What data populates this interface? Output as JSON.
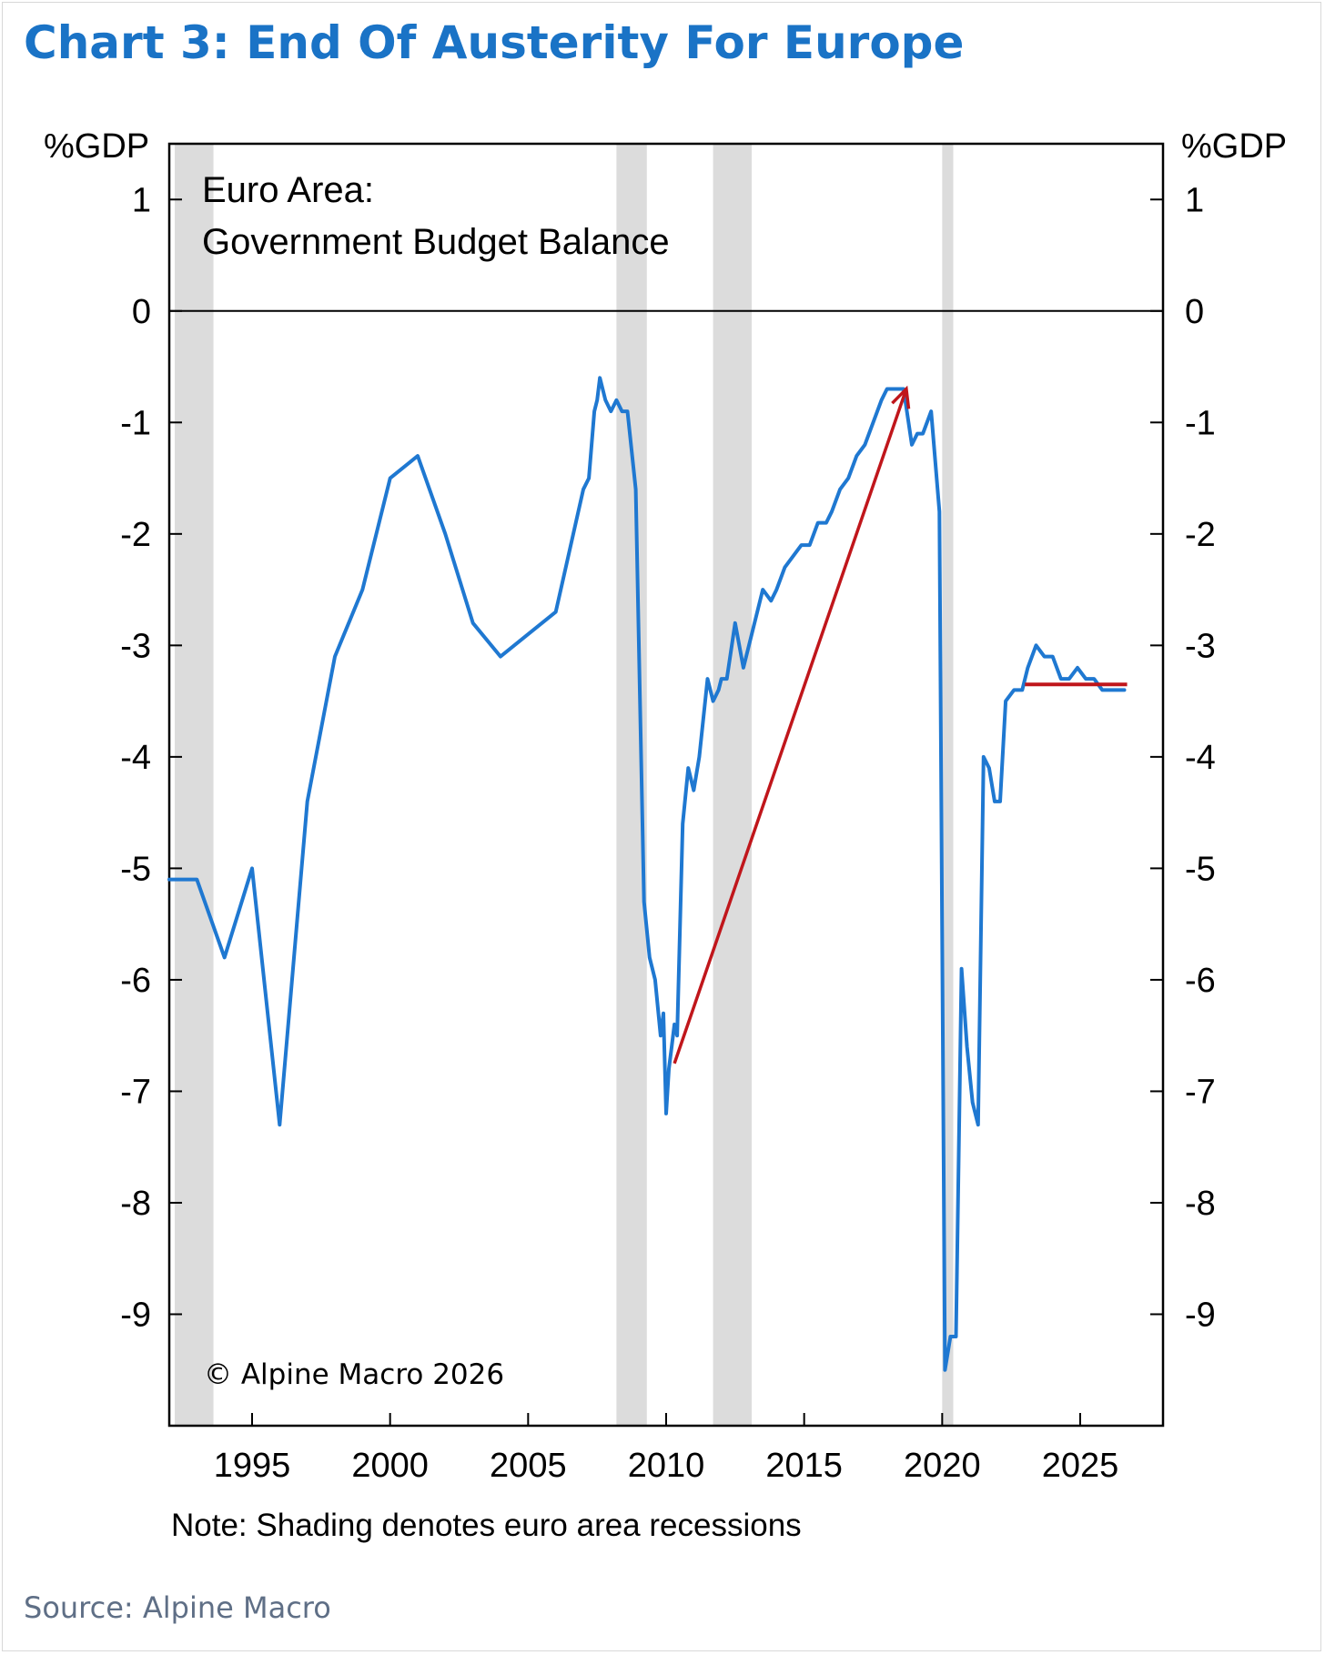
{
  "title": "Chart 3: End Of Austerity For Europe",
  "source": "Source: Alpine Macro",
  "note": "Note: Shading denotes euro area recessions",
  "copyright": "© Alpine Macro 2026",
  "annotation": {
    "line1": "Euro Area:",
    "line2": "Government Budget Balance"
  },
  "colors": {
    "title": "#1a73c6",
    "series": "#1f78d1",
    "arrow": "#c0161b",
    "shading": "#dcdcdc",
    "source": "#5f6f86"
  },
  "chart_data": {
    "type": "line",
    "ylabel_left": "%GDP",
    "ylabel_right": "%GDP",
    "xlim": [
      1992.0,
      2028.0
    ],
    "ylim": [
      -10.0,
      1.5
    ],
    "x_ticks": [
      1995,
      2000,
      2005,
      2010,
      2015,
      2020,
      2025
    ],
    "x_tick_labels": [
      "1995",
      "2000",
      "2005",
      "2010",
      "2015",
      "2020",
      "2025"
    ],
    "y_ticks": [
      1,
      0,
      -1,
      -2,
      -3,
      -4,
      -5,
      -6,
      -7,
      -8,
      -9
    ],
    "y_tick_labels": [
      "1",
      "0",
      "-1",
      "-2",
      "-3",
      "-4",
      "-5",
      "-6",
      "-7",
      "-8",
      "-9"
    ],
    "zero_line": 0,
    "recessions": [
      [
        1992.2,
        1993.6
      ],
      [
        2008.2,
        2009.3
      ],
      [
        2011.7,
        2013.1
      ],
      [
        2020.0,
        2020.4
      ]
    ],
    "series": [
      {
        "x": [
          1992.0,
          1993.0,
          1994.0,
          1995.0,
          1996.0,
          1997.0,
          1998.0,
          1999.0,
          2000.0,
          2001.0,
          2002.0,
          2003.0,
          2004.0,
          2005.0,
          2006.0,
          2007.0,
          2007.2,
          2007.4,
          2007.5,
          2007.6,
          2007.8,
          2008.0,
          2008.2,
          2008.4,
          2008.6,
          2008.9,
          2009.2,
          2009.4,
          2009.6,
          2009.8,
          2009.9,
          2010.0,
          2010.1,
          2010.2,
          2010.3,
          2010.4,
          2010.6,
          2010.8,
          2011.0,
          2011.2,
          2011.5,
          2011.7,
          2011.9,
          2012.0,
          2012.2,
          2012.5,
          2012.8,
          2013.0,
          2013.2,
          2013.5,
          2013.8,
          2014.0,
          2014.3,
          2014.6,
          2014.9,
          2015.2,
          2015.5,
          2015.8,
          2016.0,
          2016.3,
          2016.6,
          2016.9,
          2017.2,
          2017.5,
          2017.8,
          2018.0,
          2018.3,
          2018.6,
          2018.9,
          2019.1,
          2019.3,
          2019.6,
          2019.9,
          2020.1,
          2020.3,
          2020.5,
          2020.7,
          2020.9,
          2021.1,
          2021.3,
          2021.5,
          2021.7,
          2021.9,
          2022.1,
          2022.3,
          2022.6,
          2022.9,
          2023.1,
          2023.4,
          2023.7,
          2024.0,
          2024.3,
          2024.6,
          2024.9,
          2025.2,
          2025.5,
          2025.8,
          2026.0,
          2026.3,
          2026.6
        ],
        "y": [
          -5.1,
          -5.1,
          -5.8,
          -5.0,
          -7.3,
          -4.4,
          -3.1,
          -2.5,
          -1.5,
          -1.3,
          -2.0,
          -2.8,
          -3.1,
          -2.9,
          -2.7,
          -1.6,
          -1.5,
          -0.9,
          -0.8,
          -0.6,
          -0.8,
          -0.9,
          -0.8,
          -0.9,
          -0.9,
          -1.6,
          -5.3,
          -5.8,
          -6.0,
          -6.5,
          -6.3,
          -7.2,
          -6.8,
          -6.6,
          -6.4,
          -6.5,
          -4.6,
          -4.1,
          -4.3,
          -4.0,
          -3.3,
          -3.5,
          -3.4,
          -3.3,
          -3.3,
          -2.8,
          -3.2,
          -3.0,
          -2.8,
          -2.5,
          -2.6,
          -2.5,
          -2.3,
          -2.2,
          -2.1,
          -2.1,
          -1.9,
          -1.9,
          -1.8,
          -1.6,
          -1.5,
          -1.3,
          -1.2,
          -1.0,
          -0.8,
          -0.7,
          -0.7,
          -0.7,
          -1.2,
          -1.1,
          -1.1,
          -0.9,
          -1.8,
          -9.5,
          -9.2,
          -9.2,
          -5.9,
          -6.6,
          -7.1,
          -7.3,
          -4.0,
          -4.1,
          -4.4,
          -4.4,
          -3.5,
          -3.4,
          -3.4,
          -3.2,
          -3.0,
          -3.1,
          -3.1,
          -3.3,
          -3.3,
          -3.2,
          -3.3,
          -3.3,
          -3.4,
          -3.4,
          -3.4,
          -3.4
        ]
      }
    ],
    "arrows": [
      {
        "from": [
          2010.3,
          -6.75
        ],
        "to": [
          2018.7,
          -0.7
        ]
      }
    ],
    "reference_line": {
      "y": -3.35,
      "x": [
        2023.0,
        2026.7
      ]
    }
  }
}
